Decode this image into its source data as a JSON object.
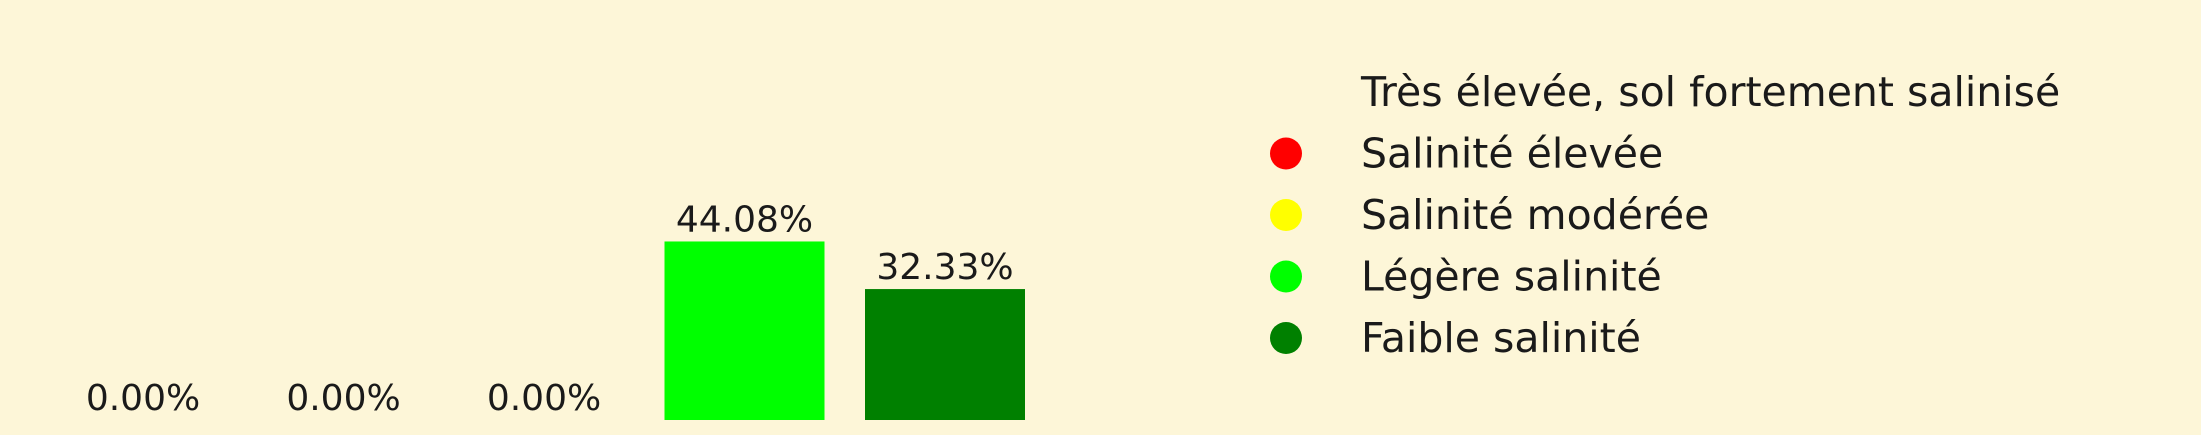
{
  "chart_data": {
    "type": "bar",
    "categories": [
      "Très élevée, sol fortement salinisé",
      "Salinité élevée",
      "Salinité modérée",
      "Légère salinité",
      "Faible salinité"
    ],
    "values": [
      0.0,
      0.0,
      0.0,
      44.08,
      32.33
    ],
    "value_labels": [
      "0.00%",
      "0.00%",
      "0.00%",
      "44.08%",
      "32.33%"
    ],
    "colors": [
      "#fdf6d8",
      "#ff0000",
      "#ffff00",
      "#00ff00",
      "#008000"
    ],
    "legend": {
      "position": "right",
      "entries": [
        "Très élevée, sol fortement salinisé",
        "Salinité élevée",
        "Salinité modérée",
        "Légère salinité",
        "Faible salinité"
      ]
    },
    "background": "#fdf6d8",
    "axes_visible": false,
    "ylim": [
      0,
      50
    ]
  }
}
